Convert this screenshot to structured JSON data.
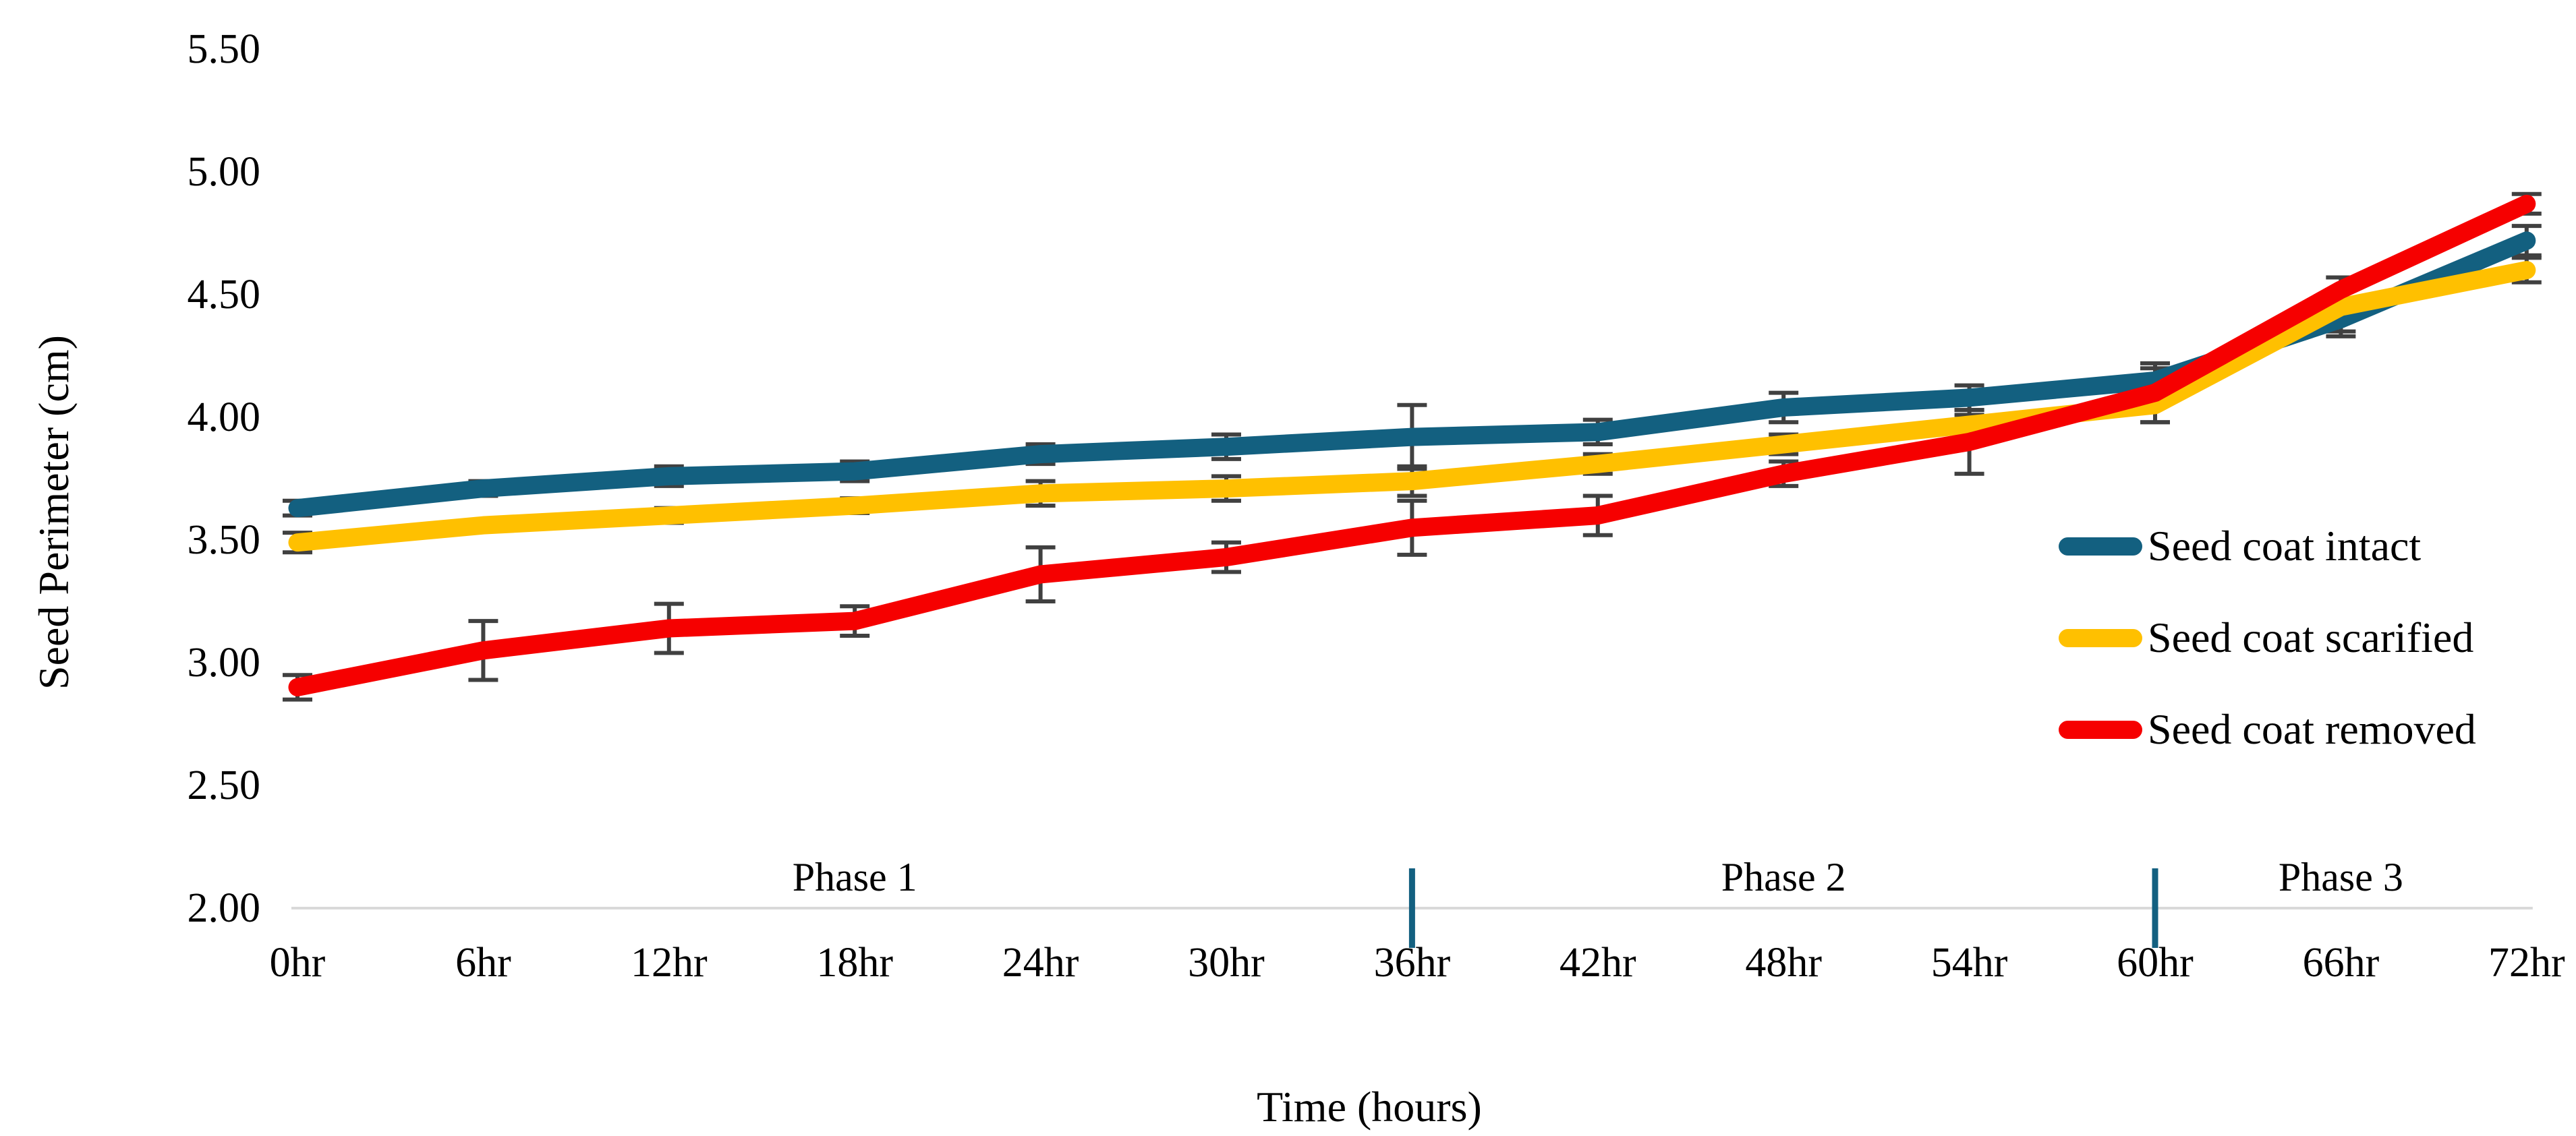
{
  "chart_data": {
    "type": "line",
    "title": "",
    "xlabel": "Time (hours)",
    "ylabel": "Seed Perimeter (cm)",
    "x_hours": [
      0,
      6,
      12,
      18,
      24,
      30,
      36,
      42,
      48,
      54,
      60,
      66,
      72
    ],
    "x_tick_labels": [
      "0hr",
      "6hr",
      "12hr",
      "18hr",
      "24hr",
      "30hr",
      "36hr",
      "42hr",
      "48hr",
      "54hr",
      "60hr",
      "66hr",
      "72hr"
    ],
    "y_ticks": [
      5.5,
      5.0,
      4.5,
      4.0,
      3.5,
      3.0,
      2.5,
      2.0
    ],
    "y_tick_labels": [
      "5.50",
      "5.00",
      "4.50",
      "4.00",
      "3.50",
      "3.00",
      "2.50",
      "2.00"
    ],
    "ylim": [
      2.0,
      5.5
    ],
    "grid": false,
    "legend_position": "right",
    "axis_line_color": "#D9D9D9",
    "error_bar_color": "#404040",
    "divider_color": "#136080",
    "phases": [
      {
        "label": "Phase 1",
        "center_hour": 18,
        "divider_hour": null
      },
      {
        "label": "Phase 2",
        "center_hour": 48,
        "divider_hour": 36
      },
      {
        "label": "Phase 3",
        "center_hour": 66,
        "divider_hour": 60
      }
    ],
    "series": [
      {
        "name": "Seed coat intact",
        "color": "#136080",
        "values": [
          3.63,
          3.71,
          3.76,
          3.78,
          3.85,
          3.88,
          3.92,
          3.94,
          4.04,
          4.08,
          4.15,
          4.4,
          4.72
        ],
        "errors": [
          0.03,
          0.03,
          0.04,
          0.04,
          0.04,
          0.05,
          0.13,
          0.05,
          0.06,
          0.05,
          0.05,
          0.05,
          0.06
        ]
      },
      {
        "name": "Seed coat scarified",
        "color": "#FFC000",
        "values": [
          3.49,
          3.56,
          3.6,
          3.64,
          3.69,
          3.71,
          3.74,
          3.81,
          3.89,
          3.97,
          4.05,
          4.45,
          4.6
        ],
        "errors": [
          0.04,
          0.02,
          0.03,
          0.03,
          0.05,
          0.05,
          0.06,
          0.04,
          0.04,
          0.04,
          0.07,
          0.12,
          0.05
        ]
      },
      {
        "name": "Seed coat removed",
        "color": "#F60000",
        "values": [
          2.9,
          3.05,
          3.14,
          3.17,
          3.36,
          3.43,
          3.55,
          3.6,
          3.77,
          3.9,
          4.1,
          4.52,
          4.87
        ],
        "errors": [
          0.05,
          0.12,
          0.1,
          0.06,
          0.11,
          0.06,
          0.11,
          0.08,
          0.05,
          0.13,
          0.12,
          0.05,
          0.04
        ]
      }
    ]
  }
}
